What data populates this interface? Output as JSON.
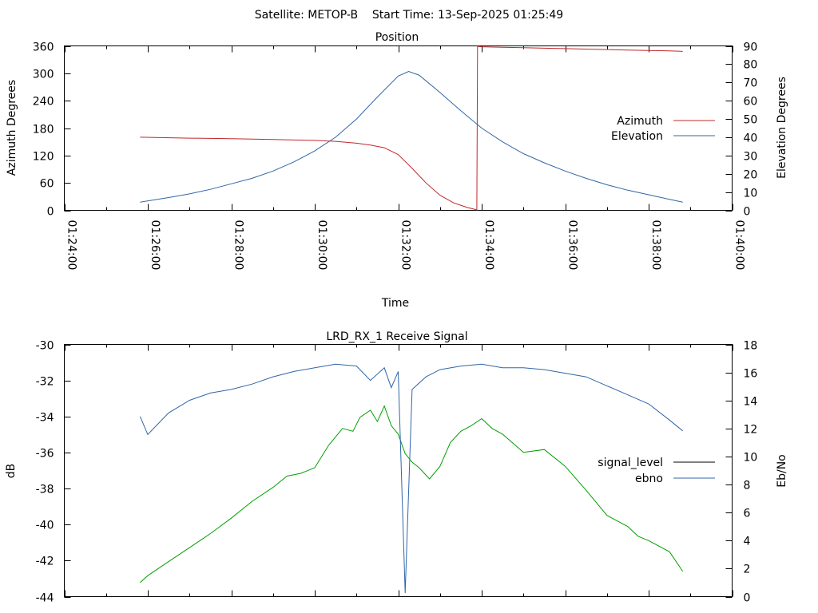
{
  "header": {
    "title": "Satellite: METOP-B    Start Time: 13-Sep-2025 01:25:49"
  },
  "colors": {
    "azimuth": "#c0282a",
    "elevation": "#2f66a8",
    "signal_level": "#000000",
    "ebno_curve": "#00a000",
    "ebno_legend": "#2f66a8"
  },
  "chart_data": [
    {
      "type": "line",
      "title": "Position",
      "xlabel": "Time",
      "ylabel": "Azimuth Degrees",
      "y2label": "Elevation Degrees",
      "xlim": [
        "01:24:00",
        "01:40:00"
      ],
      "ylim": [
        0,
        360
      ],
      "y2lim": [
        0,
        90
      ],
      "xticks": [
        "01:24:00",
        "01:26:00",
        "01:28:00",
        "01:30:00",
        "01:32:00",
        "01:34:00",
        "01:36:00",
        "01:38:00",
        "01:40:00"
      ],
      "yticks": [
        "0",
        "60",
        "120",
        "180",
        "240",
        "300",
        "360"
      ],
      "y2ticks": [
        "0",
        "10",
        "20",
        "30",
        "40",
        "50",
        "60",
        "70",
        "80",
        "90"
      ],
      "legend": "right",
      "series": [
        {
          "name": "Azimuth",
          "axis": "y",
          "x": [
            "01:25:49",
            "01:27:00",
            "01:28:00",
            "01:29:00",
            "01:29:30",
            "01:30:00",
            "01:30:30",
            "01:31:00",
            "01:31:20",
            "01:31:40",
            "01:32:00",
            "01:32:20",
            "01:32:40",
            "01:33:00",
            "01:33:20",
            "01:33:40",
            "01:33:53",
            "01:33:54",
            "01:34:00",
            "01:34:30",
            "01:35:00",
            "01:35:30",
            "01:36:00",
            "01:36:30",
            "01:37:00",
            "01:37:30",
            "01:38:00",
            "01:38:30",
            "01:38:49"
          ],
          "values": [
            160,
            158,
            157,
            155,
            154,
            153,
            151,
            147,
            143,
            137,
            122,
            92,
            60,
            33,
            16,
            6,
            1,
            359,
            358,
            357,
            356,
            355,
            354,
            353,
            352,
            351,
            350,
            349,
            348
          ]
        },
        {
          "name": "Elevation",
          "axis": "y2",
          "x": [
            "01:25:49",
            "01:26:30",
            "01:27:00",
            "01:27:30",
            "01:28:00",
            "01:28:30",
            "01:29:00",
            "01:29:30",
            "01:30:00",
            "01:30:30",
            "01:31:00",
            "01:31:30",
            "01:32:00",
            "01:32:15",
            "01:32:30",
            "01:33:00",
            "01:33:30",
            "01:34:00",
            "01:34:30",
            "01:35:00",
            "01:35:30",
            "01:36:00",
            "01:36:30",
            "01:37:00",
            "01:37:30",
            "01:38:00",
            "01:38:30",
            "01:38:49"
          ],
          "values": [
            4.5,
            7,
            9,
            11.5,
            14.5,
            17.5,
            21.5,
            26.5,
            32.5,
            40,
            50,
            62,
            73.5,
            76,
            74,
            64.5,
            54.5,
            45,
            37.5,
            31,
            26,
            21.5,
            17.5,
            14,
            11,
            8.5,
            6,
            4.5
          ]
        }
      ]
    },
    {
      "type": "line",
      "title": "LRD_RX_1 Receive Signal",
      "xlabel": "",
      "ylabel": "dB",
      "y2label": "Eb/No",
      "xlim": [
        "01:24:00",
        "01:40:00"
      ],
      "ylim": [
        -44,
        -30
      ],
      "y2lim": [
        0,
        18
      ],
      "yticks": [
        "-44",
        "-42",
        "-40",
        "-38",
        "-36",
        "-34",
        "-32",
        "-30"
      ],
      "y2ticks": [
        "0",
        "2",
        "4",
        "6",
        "8",
        "10",
        "12",
        "14",
        "16",
        "18"
      ],
      "legend": "right",
      "series": [
        {
          "name": "signal_level",
          "axis": "y",
          "x": [
            "01:25:49",
            "01:26:00",
            "01:26:30",
            "01:27:00",
            "01:27:30",
            "01:28:00",
            "01:28:30",
            "01:29:00",
            "01:29:30",
            "01:30:00",
            "01:30:30",
            "01:31:00",
            "01:31:20",
            "01:31:40",
            "01:31:50",
            "01:32:00",
            "01:32:10",
            "01:32:20",
            "01:32:40",
            "01:33:00",
            "01:33:30",
            "01:34:00",
            "01:34:30",
            "01:35:00",
            "01:35:30",
            "01:36:00",
            "01:36:30",
            "01:37:00",
            "01:37:30",
            "01:38:00",
            "01:38:30",
            "01:38:49"
          ],
          "values": [
            -34.0,
            -35.0,
            -33.8,
            -33.1,
            -32.7,
            -32.5,
            -32.2,
            -31.8,
            -31.5,
            -31.3,
            -31.1,
            -31.2,
            -32.0,
            -31.3,
            -32.4,
            -31.5,
            -43.8,
            -32.5,
            -31.8,
            -31.4,
            -31.2,
            -31.1,
            -31.3,
            -31.3,
            -31.4,
            -31.6,
            -31.8,
            -32.3,
            -32.8,
            -33.3,
            -34.2,
            -34.8
          ]
        },
        {
          "name": "ebno",
          "axis": "y2",
          "x": [
            "01:25:49",
            "01:26:00",
            "01:26:30",
            "01:27:00",
            "01:27:30",
            "01:28:00",
            "01:28:30",
            "01:29:00",
            "01:29:20",
            "01:29:40",
            "01:30:00",
            "01:30:20",
            "01:30:40",
            "01:30:55",
            "01:31:05",
            "01:31:20",
            "01:31:30",
            "01:31:40",
            "01:31:50",
            "01:32:00",
            "01:32:10",
            "01:32:20",
            "01:32:30",
            "01:32:45",
            "01:33:00",
            "01:33:15",
            "01:33:30",
            "01:33:45",
            "01:34:00",
            "01:34:15",
            "01:34:30",
            "01:35:00",
            "01:35:30",
            "01:36:00",
            "01:36:30",
            "01:37:00",
            "01:37:30",
            "01:37:45",
            "01:38:00",
            "01:38:30",
            "01:38:49"
          ],
          "values": [
            1.0,
            1.5,
            2.5,
            3.5,
            4.5,
            5.6,
            6.8,
            7.8,
            8.6,
            8.8,
            9.2,
            10.8,
            12.0,
            11.8,
            12.8,
            13.3,
            12.5,
            13.6,
            12.2,
            11.6,
            10.2,
            9.6,
            9.2,
            8.4,
            9.3,
            11.0,
            11.8,
            12.2,
            12.7,
            12.0,
            11.6,
            10.3,
            10.5,
            9.3,
            7.6,
            5.8,
            5.0,
            4.3,
            4.0,
            3.2,
            1.8
          ]
        }
      ]
    }
  ]
}
